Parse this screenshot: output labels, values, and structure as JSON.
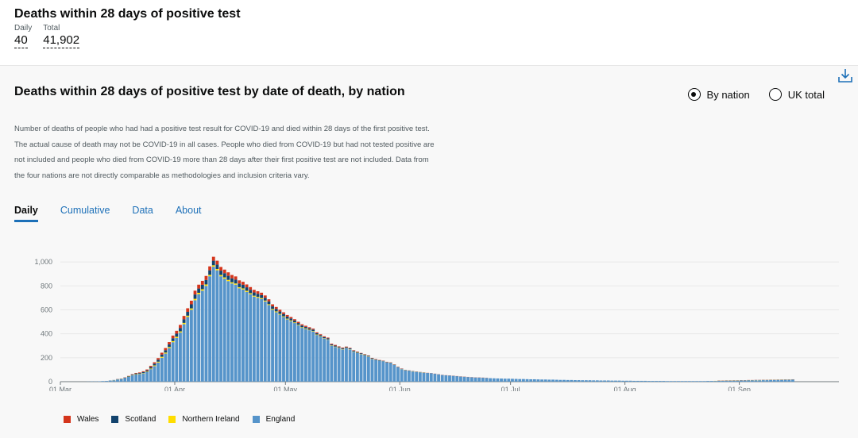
{
  "headline": {
    "title": "Deaths within 28 days of positive test",
    "daily_label": "Daily",
    "daily_value": "40",
    "total_label": "Total",
    "total_value": "41,902"
  },
  "card": {
    "title": "Deaths within 28 days of positive test by date of death, by nation",
    "radio_by_nation": "By nation",
    "radio_uk_total": "UK total",
    "selected_radio": "by_nation",
    "description": "Number of deaths of people who had had a positive test result for COVID-19 and died within 28 days of the first positive test. The actual cause of death may not be COVID-19 in all cases. People who died from COVID-19 but had not tested positive are not included and people who died from COVID-19 more than 28 days after their first positive test are not included. Data from the four nations are not directly comparable as methodologies and inclusion criteria vary.",
    "tabs": [
      "Daily",
      "Cumulative",
      "Data",
      "About"
    ],
    "active_tab": "Daily",
    "download_icon": "download-icon"
  },
  "colors": {
    "Wales": "#d4351c",
    "Scotland": "#12436d",
    "Northern Ireland": "#ffdd00",
    "England": "#5694ca",
    "link": "#1d70b8"
  },
  "chart_data": {
    "type": "bar",
    "stacked": true,
    "x_start": "2020-03-01",
    "x_ticks": [
      "01 Mar",
      "01 Apr",
      "01 May",
      "01 Jun",
      "01 Jul",
      "01 Aug",
      "01 Sep"
    ],
    "y_ticks": [
      "0",
      "200",
      "400",
      "600",
      "800",
      "1,000"
    ],
    "ylim": [
      0,
      1100
    ],
    "grid": true,
    "legend_position": "bottom-left",
    "series_order": [
      "England",
      "Northern Ireland",
      "Scotland",
      "Wales"
    ],
    "legend": [
      "Wales",
      "Scotland",
      "Northern Ireland",
      "England"
    ],
    "england_start": "2020-03-02",
    "england_values": [
      0,
      0,
      0,
      0,
      0,
      0,
      1,
      2,
      2,
      3,
      5,
      6,
      9,
      12,
      18,
      22,
      30,
      40,
      52,
      60,
      62,
      70,
      80,
      105,
      130,
      160,
      200,
      235,
      280,
      330,
      365,
      410,
      480,
      540,
      600,
      680,
      730,
      760,
      800,
      880,
      960,
      930,
      880,
      860,
      840,
      820,
      810,
      780,
      770,
      750,
      730,
      710,
      700,
      690,
      670,
      640,
      600,
      580,
      560,
      540,
      520,
      505,
      490,
      470,
      450,
      440,
      430,
      420,
      390,
      375,
      360,
      350,
      300,
      290,
      280,
      270,
      280,
      270,
      250,
      240,
      230,
      220,
      210,
      190,
      180,
      175,
      170,
      160,
      155,
      140,
      120,
      105,
      95,
      90,
      85,
      80,
      78,
      75,
      72,
      70,
      65,
      60,
      55,
      52,
      50,
      48,
      45,
      42,
      40,
      38,
      36,
      34,
      33,
      32,
      30,
      29,
      28,
      27,
      26,
      25,
      25,
      24,
      23,
      22,
      22,
      21,
      20,
      20,
      19,
      18,
      18,
      17,
      17,
      16,
      15,
      15,
      14,
      14,
      13,
      13,
      12,
      12,
      12,
      11,
      11,
      10,
      10,
      10,
      9,
      9,
      9,
      8,
      8,
      8,
      7,
      7,
      7,
      7,
      6,
      6,
      6,
      6,
      6,
      5,
      5,
      5,
      5,
      5,
      5,
      5,
      5,
      5,
      5,
      5,
      6,
      6,
      6,
      7,
      7,
      8,
      8,
      9,
      9,
      10,
      10,
      11,
      11,
      12,
      12,
      13,
      13,
      14,
      14,
      15,
      15,
      16,
      16,
      17
    ],
    "ni_values": [
      0,
      0,
      0,
      0,
      0,
      0,
      0,
      0,
      0,
      0,
      0,
      0,
      0,
      1,
      1,
      1,
      1,
      2,
      2,
      3,
      3,
      3,
      4,
      5,
      6,
      7,
      8,
      8,
      9,
      9,
      10,
      10,
      11,
      11,
      12,
      12,
      12,
      12,
      12,
      12,
      12,
      11,
      11,
      11,
      10,
      10,
      10,
      9,
      9,
      9,
      9,
      8,
      8,
      8,
      7,
      7,
      7,
      7,
      6,
      6,
      6,
      6,
      5,
      5,
      5,
      5,
      4,
      4,
      4,
      4,
      3,
      3,
      3,
      3,
      3,
      3,
      2,
      2,
      2,
      2,
      2,
      2,
      2,
      2,
      1,
      1,
      1,
      1,
      1,
      1,
      1,
      1,
      1,
      1,
      1,
      1,
      1,
      1,
      0,
      0,
      0,
      0,
      0,
      0,
      0,
      0,
      0,
      0,
      0,
      0,
      0,
      0,
      0,
      0,
      0,
      0,
      0,
      0,
      0,
      0,
      0,
      0,
      0,
      0,
      0,
      0,
      0,
      0,
      0,
      0,
      0,
      0,
      0,
      0,
      0,
      0,
      0,
      0,
      0,
      0,
      0,
      0,
      0,
      0,
      0,
      0,
      0,
      0,
      0,
      0,
      0,
      0,
      0,
      0,
      0,
      0,
      0,
      0,
      0,
      0,
      0,
      0,
      0,
      0,
      0,
      0,
      0,
      0,
      0,
      0,
      0,
      0,
      0,
      0,
      0,
      0,
      1,
      1,
      1,
      1,
      1,
      1,
      1,
      1,
      1,
      1,
      1,
      1,
      1,
      1,
      1,
      1,
      1,
      1,
      1,
      1,
      1,
      1,
      1,
      1,
      1,
      1,
      1
    ],
    "scotland_values": [
      0,
      0,
      0,
      0,
      0,
      0,
      0,
      0,
      0,
      0,
      0,
      0,
      1,
      1,
      2,
      2,
      3,
      4,
      5,
      6,
      7,
      8,
      10,
      12,
      14,
      16,
      18,
      20,
      22,
      24,
      26,
      28,
      30,
      32,
      34,
      36,
      36,
      37,
      38,
      38,
      38,
      37,
      36,
      35,
      34,
      33,
      32,
      31,
      30,
      29,
      28,
      27,
      26,
      25,
      24,
      23,
      22,
      21,
      20,
      19,
      18,
      17,
      16,
      15,
      14,
      13,
      12,
      11,
      10,
      10,
      9,
      9,
      8,
      8,
      7,
      7,
      6,
      6,
      6,
      5,
      5,
      5,
      4,
      4,
      4,
      3,
      3,
      3,
      3,
      2,
      2,
      2,
      2,
      2,
      2,
      2,
      1,
      1,
      1,
      1,
      1,
      1,
      1,
      1,
      1,
      1,
      1,
      1,
      1,
      1,
      1,
      1,
      1,
      1,
      1,
      0,
      0,
      0,
      0,
      0,
      0,
      0,
      0,
      0,
      0,
      0,
      0,
      0,
      0,
      0,
      0,
      0,
      0,
      0,
      0,
      0,
      0,
      0,
      0,
      0,
      0,
      0,
      0,
      0,
      0,
      0,
      0,
      0,
      0,
      0,
      0,
      0,
      0,
      0,
      0,
      0,
      0,
      0,
      0,
      0,
      0,
      0,
      0,
      0,
      0,
      0,
      0,
      0,
      0,
      0,
      0,
      0,
      0,
      0,
      0,
      0,
      0,
      1,
      1,
      1,
      1,
      1,
      1,
      1,
      1,
      1,
      1,
      1,
      1,
      1,
      1,
      1,
      1,
      1,
      1,
      1,
      1,
      1,
      1,
      1,
      1
    ],
    "wales_values": [
      0,
      0,
      0,
      0,
      0,
      0,
      0,
      0,
      0,
      0,
      0,
      0,
      0,
      0,
      1,
      1,
      2,
      2,
      3,
      4,
      5,
      6,
      8,
      10,
      12,
      14,
      16,
      18,
      20,
      22,
      24,
      26,
      28,
      30,
      30,
      32,
      32,
      33,
      33,
      33,
      33,
      32,
      31,
      30,
      29,
      28,
      27,
      26,
      25,
      24,
      23,
      22,
      21,
      20,
      19,
      18,
      17,
      16,
      15,
      14,
      13,
      12,
      11,
      10,
      10,
      9,
      9,
      8,
      8,
      7,
      7,
      6,
      6,
      6,
      5,
      5,
      5,
      4,
      4,
      4,
      3,
      3,
      3,
      3,
      3,
      2,
      2,
      2,
      2,
      2,
      2,
      2,
      1,
      1,
      1,
      1,
      1,
      1,
      1,
      1,
      1,
      1,
      1,
      1,
      1,
      1,
      1,
      1,
      1,
      1,
      1,
      1,
      1,
      1,
      1,
      0,
      0,
      0,
      0,
      0,
      0,
      0,
      0,
      0,
      0,
      0,
      0,
      0,
      0,
      0,
      0,
      0,
      0,
      0,
      0,
      0,
      0,
      0,
      0,
      0,
      0,
      0,
      0,
      0,
      0,
      0,
      0,
      0,
      0,
      0,
      0,
      0,
      0,
      0,
      0,
      0,
      0,
      0,
      0,
      0,
      0,
      0,
      0,
      0,
      0,
      0,
      0,
      0,
      0,
      0,
      0,
      0,
      0,
      0,
      0,
      0,
      0,
      1,
      1,
      1,
      1,
      1,
      1,
      1,
      1,
      1,
      1,
      1,
      1,
      1,
      1,
      1,
      1,
      1,
      1,
      1,
      1,
      1,
      1,
      1,
      1,
      1
    ]
  }
}
